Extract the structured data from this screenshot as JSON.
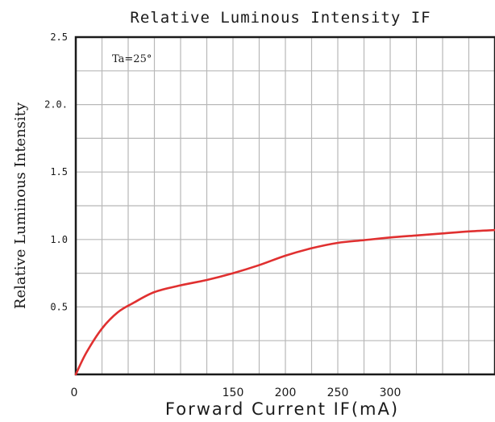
{
  "chart_data": {
    "type": "line",
    "title": "Relative  Luminous  Intensity IF",
    "xlabel": "Forward  Current IF(mA)",
    "ylabel": "Relative  Luminous  Intensity",
    "annotation": "Ta=25°",
    "x_ticks": [
      {
        "value": 0,
        "label": "0"
      },
      {
        "value": 150,
        "label": "150"
      },
      {
        "value": 200,
        "label": "200"
      },
      {
        "value": 250,
        "label": "250"
      },
      {
        "value": 300,
        "label": "300"
      }
    ],
    "y_ticks": [
      {
        "value": 0.5,
        "label": "0.5"
      },
      {
        "value": 1.0,
        "label": "1.0"
      },
      {
        "value": 1.5,
        "label": "1.5"
      },
      {
        "value": 2.0,
        "label": "2.0."
      },
      {
        "value": 2.5,
        "label": "2.5"
      }
    ],
    "xlim": [
      0,
      400
    ],
    "ylim": [
      0,
      2.5
    ],
    "grid": true,
    "series": [
      {
        "color": "#e03030",
        "x": [
          0,
          10,
          25,
          40,
          55,
          75,
          100,
          125,
          150,
          175,
          200,
          225,
          250,
          275,
          300,
          325,
          350,
          375,
          400
        ],
        "y": [
          0.0,
          0.16,
          0.34,
          0.46,
          0.53,
          0.61,
          0.66,
          0.7,
          0.75,
          0.81,
          0.88,
          0.935,
          0.975,
          0.995,
          1.015,
          1.03,
          1.045,
          1.06,
          1.07
        ]
      }
    ]
  }
}
